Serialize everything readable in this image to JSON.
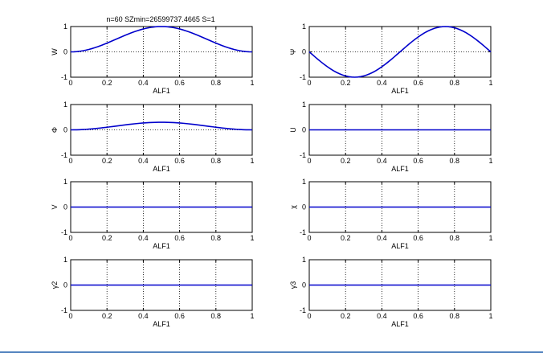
{
  "figure": {
    "title": "n=60 SZmin=26599737.4665 S=1",
    "line_color": "#0000cc",
    "grid_style": "dotted",
    "frame_color": "#4f81bd"
  },
  "chart_data": [
    {
      "type": "line",
      "title": "n=60 SZmin=26599737.4665 S=1",
      "xlabel": "ALF1",
      "ylabel": "W",
      "xlim": [
        0,
        1
      ],
      "ylim": [
        -1,
        1
      ],
      "xticks": [
        "0",
        "0.2",
        "0.4",
        "0.6",
        "0.8",
        "1"
      ],
      "yticks": [
        "-1",
        "0",
        "1"
      ],
      "grid": true,
      "series": [
        {
          "function": "sin^2(pi*x)"
        }
      ]
    },
    {
      "type": "line",
      "title": "",
      "xlabel": "ALF1",
      "ylabel": "Ψ",
      "xlim": [
        0,
        1
      ],
      "ylim": [
        -1,
        1
      ],
      "xticks": [
        "0",
        "0.2",
        "0.4",
        "0.6",
        "0.8",
        "1"
      ],
      "yticks": [
        "-1",
        "0",
        "1"
      ],
      "grid": true,
      "series": [
        {
          "function": "-sin(2*pi*x)"
        }
      ]
    },
    {
      "type": "line",
      "title": "",
      "xlabel": "ALF1",
      "ylabel": "Φ",
      "xlim": [
        0,
        1
      ],
      "ylim": [
        -1,
        1
      ],
      "xticks": [
        "0",
        "0.2",
        "0.4",
        "0.6",
        "0.8",
        "1"
      ],
      "yticks": [
        "-1",
        "0",
        "1"
      ],
      "grid": true,
      "series": [
        {
          "function": "0.3*sin^2(pi*x)"
        }
      ]
    },
    {
      "type": "line",
      "title": "",
      "xlabel": "ALF1",
      "ylabel": "U",
      "xlim": [
        0,
        1
      ],
      "ylim": [
        -1,
        1
      ],
      "xticks": [
        "0",
        "0.2",
        "0.4",
        "0.6",
        "0.8",
        "1"
      ],
      "yticks": [
        "-1",
        "0",
        "1"
      ],
      "grid": true,
      "series": [
        {
          "function": "0"
        }
      ]
    },
    {
      "type": "line",
      "title": "",
      "xlabel": "ALF1",
      "ylabel": "V",
      "xlim": [
        0,
        1
      ],
      "ylim": [
        -1,
        1
      ],
      "xticks": [
        "0",
        "0.2",
        "0.4",
        "0.6",
        "0.8",
        "1"
      ],
      "yticks": [
        "-1",
        "0",
        "1"
      ],
      "grid": true,
      "series": [
        {
          "function": "0"
        }
      ]
    },
    {
      "type": "line",
      "title": "",
      "xlabel": "ALF1",
      "ylabel": "χ",
      "xlim": [
        0,
        1
      ],
      "ylim": [
        -1,
        1
      ],
      "xticks": [
        "0",
        "0.2",
        "0.4",
        "0.6",
        "0.8",
        "1"
      ],
      "yticks": [
        "-1",
        "0",
        "1"
      ],
      "grid": true,
      "series": [
        {
          "function": "0"
        }
      ]
    },
    {
      "type": "line",
      "title": "",
      "xlabel": "ALF1",
      "ylabel": "γ2",
      "xlim": [
        0,
        1
      ],
      "ylim": [
        -1,
        1
      ],
      "xticks": [
        "0",
        "0.2",
        "0.4",
        "0.6",
        "0.8",
        "1"
      ],
      "yticks": [
        "-1",
        "0",
        "1"
      ],
      "grid": true,
      "series": [
        {
          "function": "0"
        }
      ]
    },
    {
      "type": "line",
      "title": "",
      "xlabel": "ALF1",
      "ylabel": "γ3",
      "xlim": [
        0,
        1
      ],
      "ylim": [
        -1,
        1
      ],
      "xticks": [
        "0",
        "0.2",
        "0.4",
        "0.6",
        "0.8",
        "1"
      ],
      "yticks": [
        "-1",
        "0",
        "1"
      ],
      "grid": true,
      "series": [
        {
          "function": "0"
        }
      ]
    }
  ]
}
